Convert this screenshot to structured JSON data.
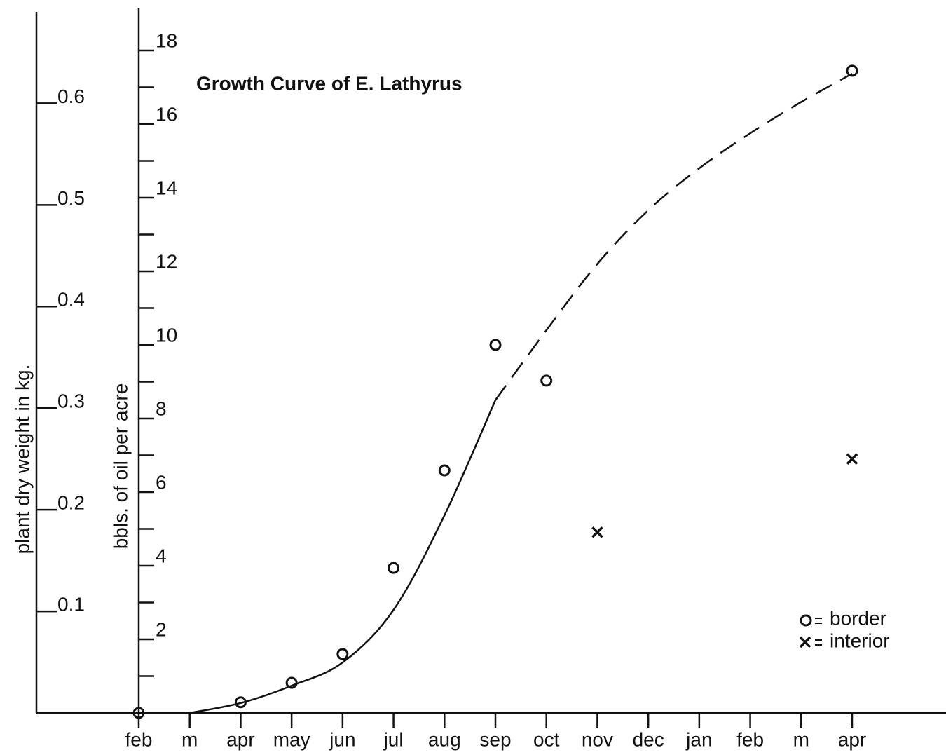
{
  "chart_data": {
    "type": "scatter",
    "title": "Growth Curve of  E. Lathyrus",
    "y_label": "bbls. of oil per acre",
    "y2_label": "plant dry weight in kg.",
    "categories": [
      "feb",
      "m",
      "apr",
      "may",
      "jun",
      "jul",
      "aug",
      "sep",
      "oct",
      "nov",
      "dec",
      "jan",
      "feb",
      "m",
      "apr"
    ],
    "series": [
      {
        "name": "border",
        "marker": "o",
        "color": "#111111",
        "values": [
          0,
          null,
          0.29,
          0.82,
          1.6,
          3.94,
          6.59,
          10.0,
          9.03,
          null,
          null,
          null,
          null,
          null,
          17.45
        ]
      },
      {
        "name": "interior",
        "marker": "x",
        "color": "#111111",
        "values": [
          null,
          null,
          null,
          null,
          null,
          null,
          null,
          null,
          null,
          4.91,
          null,
          null,
          null,
          null,
          6.9
        ]
      }
    ],
    "curves": [
      {
        "style": "solid",
        "values": [
          null,
          0,
          0.27,
          0.74,
          1.37,
          2.8,
          5.37,
          8.5,
          null,
          null,
          null,
          null,
          null,
          null,
          null
        ]
      },
      {
        "style": "dashed",
        "values": [
          null,
          null,
          null,
          null,
          null,
          null,
          null,
          8.5,
          10.4,
          12.2,
          13.66,
          14.8,
          15.75,
          16.6,
          17.37
        ]
      }
    ],
    "ylim": [
      0,
      19
    ],
    "yticks": [
      2,
      4,
      6,
      8,
      10,
      12,
      14,
      16,
      18
    ],
    "yticks_minor": [
      1,
      3,
      5,
      7,
      9,
      11,
      13,
      15,
      17
    ],
    "y2lim": [
      0,
      0.69
    ],
    "y2ticks": [
      0.1,
      0.2,
      0.3,
      0.4,
      0.5,
      0.6
    ]
  }
}
